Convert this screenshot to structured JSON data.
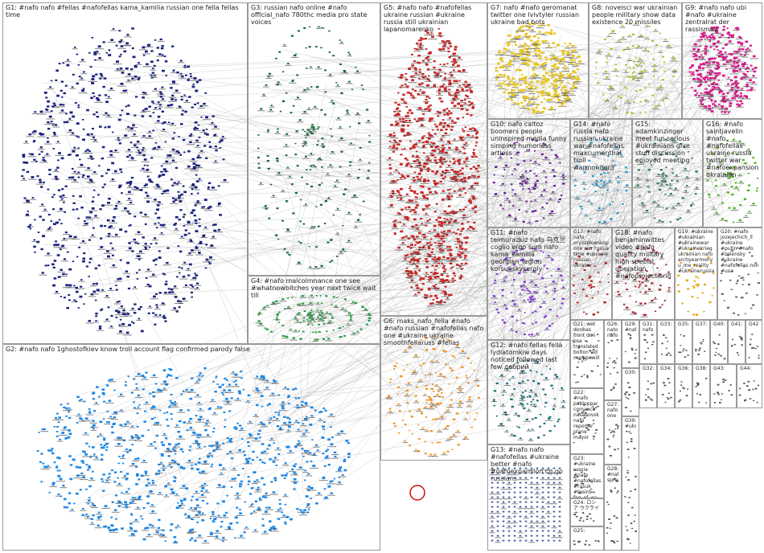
{
  "title": "",
  "groups": [
    {
      "id": "G1",
      "label": "G1: #nafo nafo #fellas #nafofellas kama_kamilia russian one fella fellas time",
      "color": "#1a237e",
      "shape": "cluster"
    },
    {
      "id": "G2",
      "label": "G2: #nafo nafo 1ghostofkiev know troll account flag confirmed parody false",
      "color": "#1e88e5",
      "shape": "cluster"
    },
    {
      "id": "G3",
      "label": "G3: russian nafo online #nafo official_nafo 780thc media pro state voices",
      "color": "#1b6b3a",
      "shape": "ring"
    },
    {
      "id": "G4",
      "label": "G4: #nafo malcolmnance one see #whatnowbitches year next twice wait till",
      "color": "#2e9e4a",
      "shape": "ring"
    },
    {
      "id": "G5",
      "label": "G5: #nafo nafo #nafofellas ukraine russian #ukraine russia still ukrainian lapanomarenko",
      "color": "#c62828",
      "shape": "cluster"
    },
    {
      "id": "G6",
      "label": "G6: maks_nafo_fella #nafo #nafo russian #nafofellas nafo one #ukraine ukraine smoothfellaruss #fellas",
      "color": "#ef8f1a",
      "shape": "ring"
    },
    {
      "id": "G7",
      "label": "G7: nafo #nafo geromanat twitter one lvivtyler russian ukraine bad bots",
      "color": "#e8c622",
      "shape": "cluster"
    },
    {
      "id": "G8",
      "label": "G8: novelsci war ukrainian people military show data existence 20 missiles",
      "color": "#a8c23a",
      "shape": "ring"
    },
    {
      "id": "G9",
      "label": "G9: #nafo nafo ubi #nafo #ukraine zentralrat der rassismus",
      "color": "#d81b8a",
      "shape": "cluster"
    },
    {
      "id": "G10",
      "label": "G10: nafo caitoz boomers people uninspired media funny simping humorless artless",
      "color": "#6a1b9a",
      "shape": "ring"
    },
    {
      "id": "G11",
      "label": "G11: #nafo teimurazkiz nafo 乌克兰 coglio ergo sum nafo kama_kamilia georgian_legion korsunskysergiy",
      "color": "#7b2fd6",
      "shape": "ring"
    },
    {
      "id": "G12",
      "label": "G12: #nafo fellas fella lydiatomkiw days noticed followed last few добрий",
      "color": "#1d6f7a",
      "shape": "ring"
    },
    {
      "id": "G13",
      "label": "G13: #nafo nafo #nafofellas #ukraine better #nafo #nafoexpansion cg go russians",
      "color": "#3d5a9a",
      "shape": "grid"
    },
    {
      "id": "G14",
      "label": "G14: #nafo russia nafo russian ukraine war #nafofellas maxcumenthal troll warmonitor3",
      "color": "#2196c9",
      "shape": "ring"
    },
    {
      "id": "G15",
      "label": "G15: adamkinzinger meet fun serious #ukrainians give stuff discussion enjoyed meeting",
      "color": "#2e7d5a",
      "shape": "ring"
    },
    {
      "id": "G16",
      "label": "G16: #nafo saintjavelin #nafo #nafofellas ukraine russia twitter war #nafoexpansion ukrainian",
      "color": "#4caf1a",
      "shape": "ring"
    },
    {
      "id": "G17",
      "label": "G17: #nafo nafo oryxspioenkop one war russia time #ukraine russian ukraine",
      "color": "#b71c1c",
      "shape": "ring"
    },
    {
      "id": "G18",
      "label": "G18: #nafo benjaminwittes video #nafo quality military high special operation #nafoprojectionop",
      "color": "#a3222e",
      "shape": "ring"
    },
    {
      "id": "G19",
      "label": "G19: #ukraine #ukrainian #ukrainewar #ukrainekrieg ukrainian nafo archyearmony u_me_reality #ukrainerussiawar",
      "color": "#e6a000",
      "shape": "ring"
    },
    {
      "id": "G20",
      "label": "G20: #nafo jozejechich_ll #ukraine #putin #nafo #zelensky #ukraine #nafofellas non #usa",
      "color": "#6d6d6d",
      "shape": "ring"
    },
    {
      "id": "G21",
      "label": "G21: wet donbas front don psa translated bolton vid maggiewill",
      "color": "#555555",
      "shape": "small"
    },
    {
      "id": "G22",
      "label": "G22: #nafo pabloppar comanco nasanovsk nafo reporter plane mayor",
      "color": "#555555",
      "shape": "small"
    },
    {
      "id": "G23",
      "label": "G23: #ukraine russia #nafo #nafofellas #rusuk #tosint fog_of_wa",
      "color": "#555555",
      "shape": "small"
    },
    {
      "id": "G24",
      "label": "G24: ロシア ウクライ ナ",
      "color": "#555555",
      "shape": "small"
    },
    {
      "id": "G25",
      "label": "G25:",
      "color": "#555555",
      "shape": "small"
    },
    {
      "id": "G26",
      "label": "G26: nato nafo",
      "color": "#555555",
      "shape": "small"
    },
    {
      "id": "G27",
      "label": "G27: nafo one",
      "color": "#555555",
      "shape": "small"
    },
    {
      "id": "G28",
      "label": "G28: #nafo spreads",
      "color": "#555555",
      "shape": "small"
    },
    {
      "id": "G29",
      "label": "G29: #nafo",
      "color": "#555555",
      "shape": "small"
    },
    {
      "id": "G30",
      "label": "G30:",
      "color": "#555555",
      "shape": "small"
    },
    {
      "id": "G31",
      "label": "G31: nafo",
      "color": "#555555",
      "shape": "small"
    },
    {
      "id": "G32",
      "label": "G32:",
      "color": "#555555",
      "shape": "small"
    },
    {
      "id": "G33",
      "label": "G33:",
      "color": "#555555",
      "shape": "small"
    },
    {
      "id": "G34",
      "label": "G34:",
      "color": "#555555",
      "shape": "small"
    },
    {
      "id": "G35",
      "label": "G35:",
      "color": "#555555",
      "shape": "small"
    },
    {
      "id": "G36",
      "label": "G36:",
      "color": "#555555",
      "shape": "small"
    },
    {
      "id": "G37",
      "label": "G37:",
      "color": "#555555",
      "shape": "small"
    },
    {
      "id": "G38",
      "label": "G38:",
      "color": "#555555",
      "shape": "small"
    },
    {
      "id": "G39",
      "label": "G39: #ukraine",
      "color": "#555555",
      "shape": "small"
    },
    {
      "id": "G40",
      "label": "G40:",
      "color": "#555555",
      "shape": "small"
    },
    {
      "id": "G41",
      "label": "G41:",
      "color": "#555555",
      "shape": "small"
    },
    {
      "id": "G42",
      "label": "G42:",
      "color": "#555555",
      "shape": "small"
    },
    {
      "id": "G43",
      "label": "G43:",
      "color": "#555555",
      "shape": "small"
    },
    {
      "id": "G44",
      "label": "G44:",
      "color": "#555555",
      "shape": "small"
    }
  ]
}
